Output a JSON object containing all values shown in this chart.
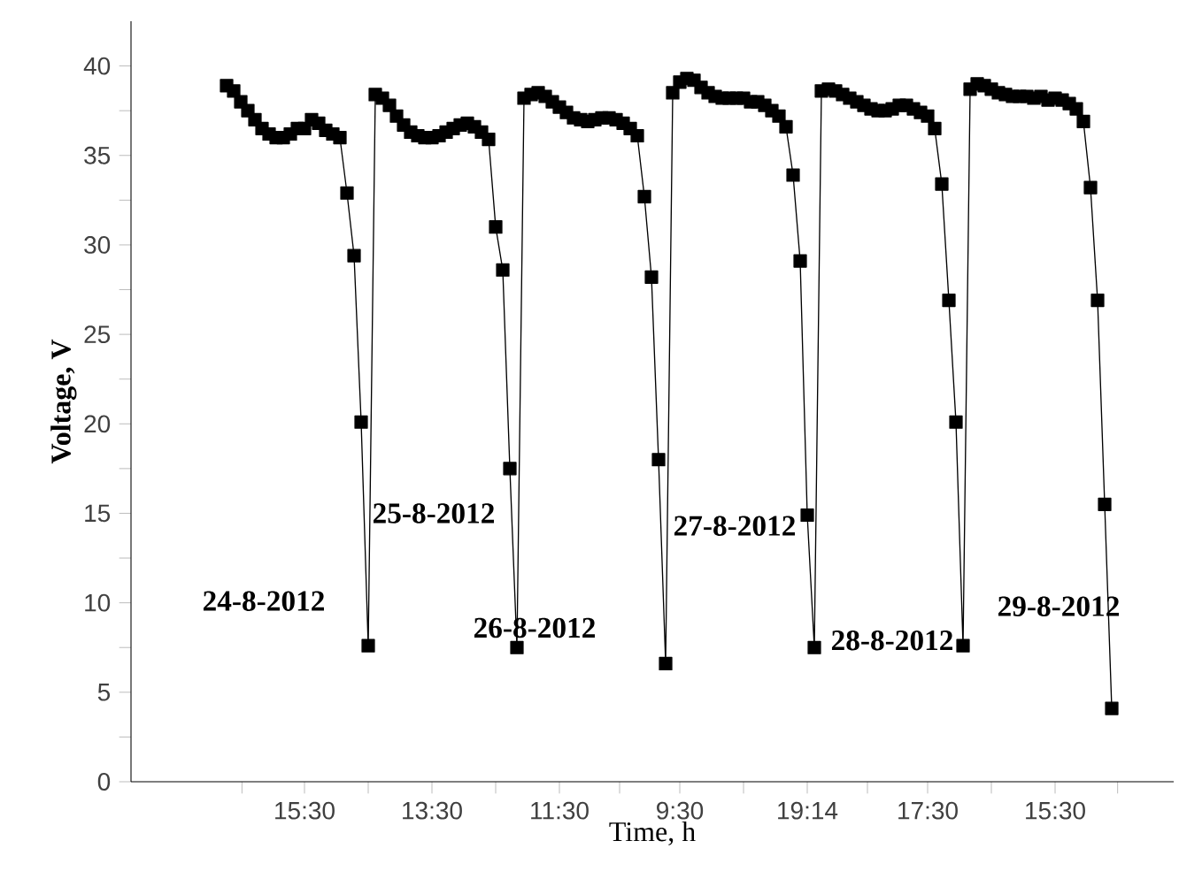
{
  "chart_data": {
    "type": "line",
    "xlabel": "Time, h",
    "ylabel": "Voltage, V",
    "ylim": [
      0,
      42.5
    ],
    "categories": [
      null,
      null,
      null,
      null,
      null,
      null,
      null,
      null,
      null,
      null,
      null,
      "15:30",
      null,
      null,
      null,
      null,
      null,
      null,
      null,
      null,
      null,
      null,
      null,
      null,
      null,
      null,
      null,
      null,
      null,
      "13:30",
      null,
      null,
      null,
      null,
      null,
      null,
      null,
      null,
      null,
      null,
      null,
      null,
      null,
      null,
      null,
      null,
      null,
      "11:30",
      null,
      null,
      null,
      null,
      null,
      null,
      null,
      null,
      null,
      null,
      null,
      null,
      null,
      null,
      null,
      null,
      "9:30",
      null,
      null,
      null,
      null,
      null,
      null,
      null,
      null,
      null,
      null,
      null,
      null,
      null,
      null,
      null,
      null,
      null,
      "19:14",
      null,
      null,
      null,
      null,
      null,
      null,
      null,
      null,
      null,
      null,
      null,
      null,
      null,
      null,
      null,
      null,
      "17:30",
      null,
      null,
      null,
      null,
      null,
      null,
      null,
      null,
      null,
      null,
      null,
      null,
      null,
      null,
      null,
      null,
      null,
      "15:30",
      null,
      null,
      null,
      null,
      null,
      null,
      null,
      null
    ],
    "yticks": [
      0,
      5,
      10,
      15,
      20,
      25,
      30,
      35,
      40
    ],
    "marker": "square",
    "line_style": "solid",
    "grid": false,
    "series": [
      {
        "color": "#000000",
        "values": [
          38.9,
          38.6,
          38,
          37.5,
          37,
          36.5,
          36.2,
          36,
          36,
          36.2,
          36.5,
          36.5,
          37,
          36.8,
          36.4,
          36.2,
          36,
          32.9,
          29.4,
          20.1,
          7.6,
          38.4,
          38.2,
          37.8,
          37.2,
          36.7,
          36.3,
          36.1,
          36,
          36,
          36.1,
          36.3,
          36.5,
          36.7,
          36.8,
          36.6,
          36.3,
          35.9,
          31.0,
          28.6,
          17.5,
          7.5,
          38.2,
          38.4,
          38.5,
          38.3,
          38,
          37.7,
          37.4,
          37.1,
          37,
          36.9,
          37,
          37.1,
          37.1,
          37,
          36.8,
          36.5,
          36.1,
          32.7,
          28.2,
          18.0,
          6.6,
          38.5,
          39.1,
          39.3,
          39.2,
          38.8,
          38.5,
          38.3,
          38.2,
          38.2,
          38.2,
          38.2,
          38,
          38,
          37.8,
          37.5,
          37.2,
          36.6,
          33.9,
          29.1,
          14.9,
          7.5,
          38.6,
          38.7,
          38.6,
          38.4,
          38.2,
          38,
          37.8,
          37.6,
          37.5,
          37.5,
          37.6,
          37.8,
          37.8,
          37.6,
          37.4,
          37.2,
          36.5,
          33.4,
          26.9,
          20.1,
          7.6,
          38.7,
          39,
          38.9,
          38.7,
          38.5,
          38.4,
          38.3,
          38.3,
          38.3,
          38.2,
          38.3,
          38.1,
          38.2,
          38.1,
          37.9,
          37.6,
          36.9,
          33.2,
          26.9,
          15.5,
          4.1
        ]
      }
    ],
    "annotations": [
      "24-8-2012",
      "25-8-2012",
      "26-8-2012",
      "27-8-2012",
      "28-8-2012",
      "29-8-2012"
    ]
  }
}
